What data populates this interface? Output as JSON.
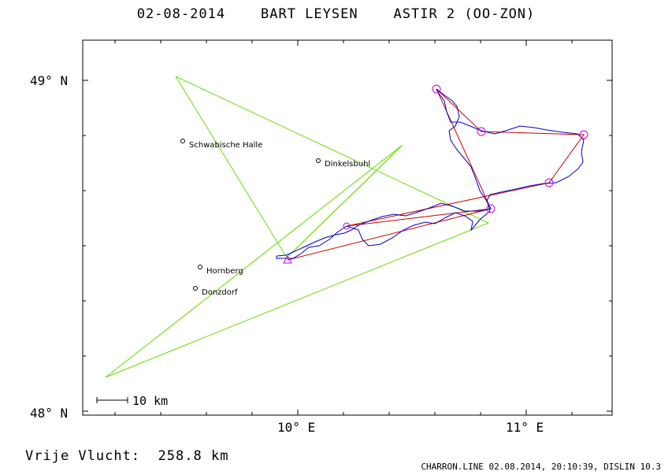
{
  "title": "02-08-2014    BART LEYSEN    ASTIR 2 (OO-ZON)",
  "map": {
    "lat_labels": [
      "49° N",
      "48° N"
    ],
    "lon_labels": [
      "10° E",
      "11° E"
    ],
    "towns": [
      {
        "name": "Schwabische Halle"
      },
      {
        "name": "Dinkelsbuhl"
      },
      {
        "name": "Hornberg"
      },
      {
        "name": "Donzdorf"
      }
    ],
    "scale_label": "10 km",
    "colors": {
      "task": "#cc0000",
      "track": "#0000cc",
      "other": "#66dd00",
      "turnpoint": "#cc00cc"
    }
  },
  "footer": {
    "distance_label": "Vrije Vlucht:",
    "distance_value": "258.8 km",
    "credit": "CHARRON.LINE 02.08.2014, 20:10:39, DISLIN 10.3"
  }
}
